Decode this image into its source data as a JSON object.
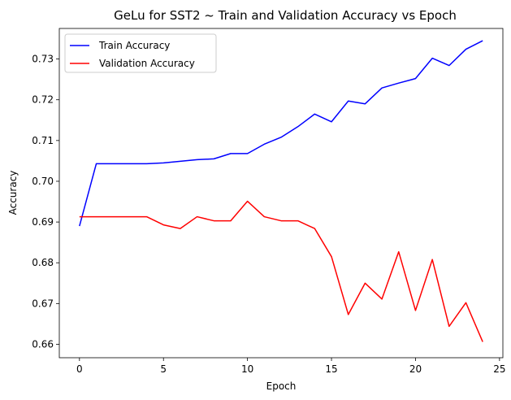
{
  "chart_data": {
    "type": "line",
    "title": "GeLu for SST2 ~ Train and Validation Accuracy vs Epoch",
    "xlabel": "Epoch",
    "ylabel": "Accuracy",
    "xlim": [
      -1.2,
      25.2
    ],
    "ylim": [
      0.6567,
      0.7375
    ],
    "xticks": [
      0,
      5,
      10,
      15,
      20,
      25
    ],
    "yticks": [
      0.66,
      0.67,
      0.68,
      0.69,
      0.7,
      0.71,
      0.72,
      0.73
    ],
    "ytick_format": 2,
    "grid": false,
    "legend_position": "upper-left",
    "x": [
      0,
      1,
      2,
      3,
      4,
      5,
      6,
      7,
      8,
      9,
      10,
      11,
      12,
      13,
      14,
      15,
      16,
      17,
      18,
      19,
      20,
      21,
      22,
      23,
      24
    ],
    "series": [
      {
        "name": "Train Accuracy",
        "color": "#0000ff",
        "values": [
          0.689,
          0.7043,
          0.7043,
          0.7043,
          0.7043,
          0.7045,
          0.7049,
          0.7053,
          0.7055,
          0.7068,
          0.7068,
          0.7091,
          0.7108,
          0.7134,
          0.7165,
          0.7146,
          0.7197,
          0.719,
          0.7229,
          0.7241,
          0.7252,
          0.7302,
          0.7284,
          0.7324,
          0.7345
        ]
      },
      {
        "name": "Validation Accuracy",
        "color": "#ff0000",
        "values": [
          0.6913,
          0.6913,
          0.6913,
          0.6913,
          0.6913,
          0.6893,
          0.6884,
          0.6913,
          0.6903,
          0.6903,
          0.6951,
          0.6913,
          0.6903,
          0.6903,
          0.6884,
          0.6815,
          0.6673,
          0.675,
          0.6711,
          0.6827,
          0.6683,
          0.6808,
          0.6644,
          0.6702,
          0.6606
        ]
      }
    ]
  }
}
